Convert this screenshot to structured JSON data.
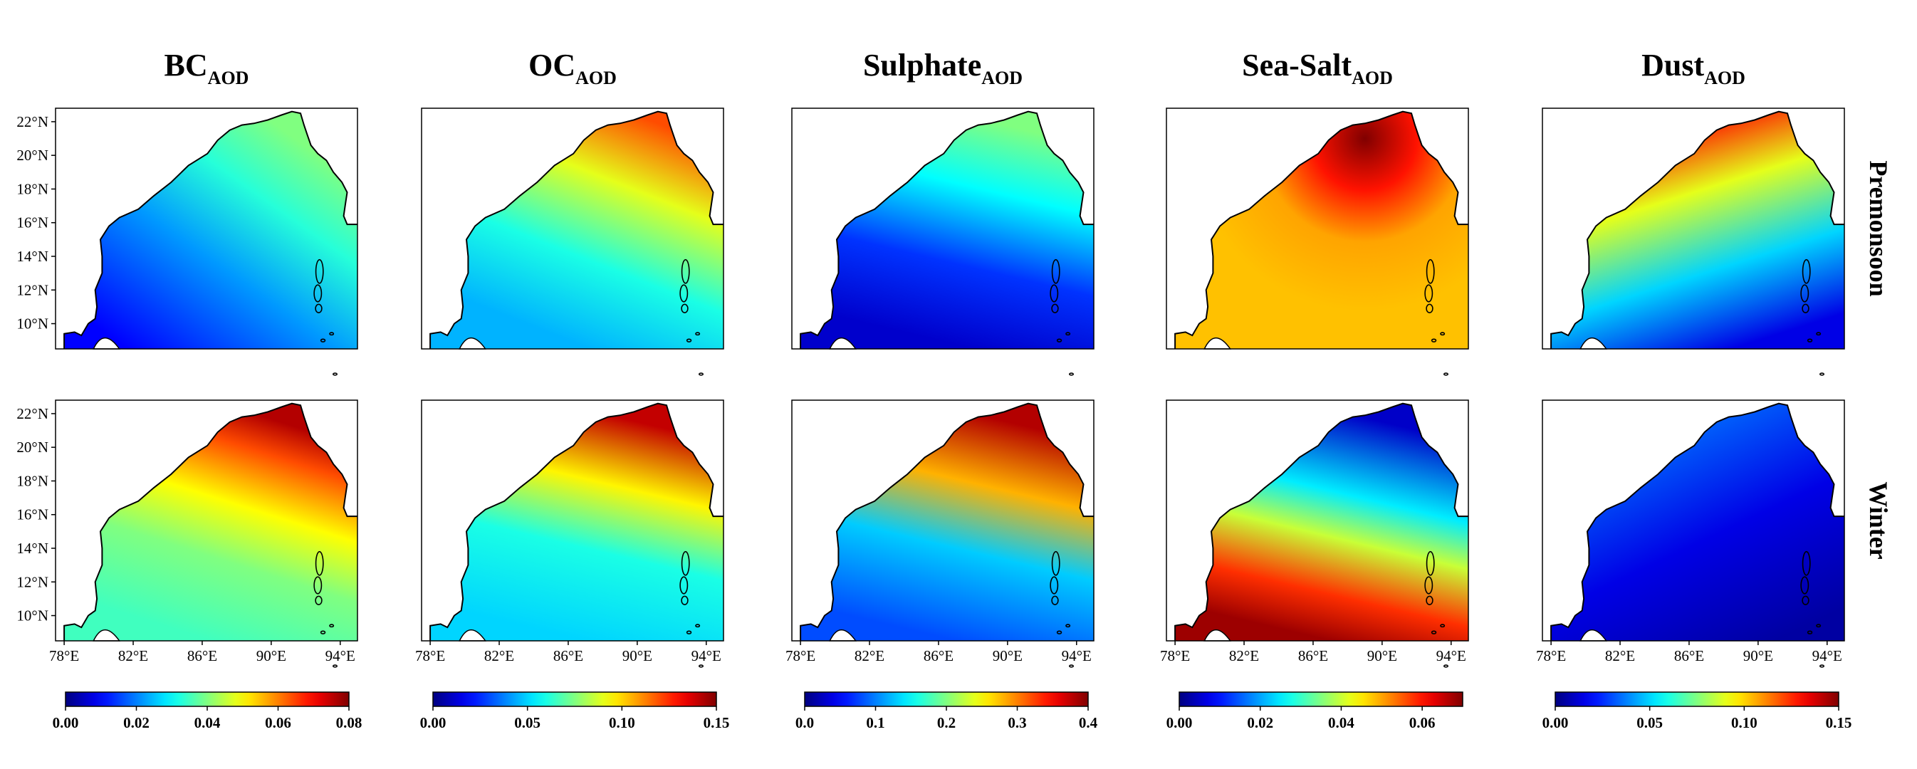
{
  "chart_data": {
    "type": "heatmap",
    "colormap": "jet",
    "columns": [
      {
        "title_main": "BC",
        "title_sub": "AOD"
      },
      {
        "title_main": "OC",
        "title_sub": "AOD"
      },
      {
        "title_main": "Sulphate",
        "title_sub": "AOD"
      },
      {
        "title_main": "Sea-Salt",
        "title_sub": "AOD"
      },
      {
        "title_main": "Dust",
        "title_sub": "AOD"
      }
    ],
    "rows": [
      "Premonsoon",
      "Winter"
    ],
    "x_ticks": [
      "78°E",
      "82°E",
      "86°E",
      "90°E",
      "94°E"
    ],
    "x_tick_values": [
      78,
      82,
      86,
      90,
      94
    ],
    "y_ticks": [
      "22°N",
      "20°N",
      "18°N",
      "16°N",
      "14°N",
      "12°N",
      "10°N"
    ],
    "y_tick_values": [
      22,
      20,
      18,
      16,
      14,
      12,
      10
    ],
    "xlim": [
      77.5,
      95
    ],
    "ylim": [
      8.5,
      22.8
    ],
    "colorbars": [
      {
        "min": 0,
        "max": 0.08,
        "ticks": [
          "0.00",
          "0.02",
          "0.04",
          "0.06",
          "0.08"
        ],
        "tick_values": [
          0,
          0.02,
          0.04,
          0.06,
          0.08
        ]
      },
      {
        "min": 0,
        "max": 0.15,
        "ticks": [
          "0.00",
          "0.05",
          "0.10",
          "0.15"
        ],
        "tick_values": [
          0,
          0.05,
          0.1,
          0.15
        ]
      },
      {
        "min": 0,
        "max": 0.4,
        "ticks": [
          "0.0",
          "0.1",
          "0.2",
          "0.3",
          "0.4"
        ],
        "tick_values": [
          0,
          0.1,
          0.2,
          0.3,
          0.4
        ]
      },
      {
        "min": 0,
        "max": 0.07,
        "ticks": [
          "0.00",
          "0.02",
          "0.04",
          "0.06"
        ],
        "tick_values": [
          0,
          0.02,
          0.04,
          0.06
        ]
      },
      {
        "min": 0,
        "max": 0.15,
        "ticks": [
          "0.00",
          "0.05",
          "0.10",
          "0.15"
        ],
        "tick_values": [
          0,
          0.05,
          0.1,
          0.15
        ]
      }
    ],
    "fields": [
      [
        {
          "gradient": "linear",
          "from": [
            81,
            9
          ],
          "to": [
            90,
            22
          ],
          "stops": [
            [
              0,
              0.01
            ],
            [
              0.45,
              0.022
            ],
            [
              0.75,
              0.033
            ],
            [
              1,
              0.04
            ]
          ]
        },
        {
          "gradient": "linear",
          "from": [
            86,
            9
          ],
          "to": [
            91,
            22
          ],
          "stops": [
            [
              0,
              0.045
            ],
            [
              0.35,
              0.06
            ],
            [
              0.7,
              0.09
            ],
            [
              1,
              0.12
            ]
          ]
        },
        {
          "gradient": "linear",
          "from": [
            86,
            9
          ],
          "to": [
            89,
            22
          ],
          "stops": [
            [
              0,
              0.03
            ],
            [
              0.35,
              0.07
            ],
            [
              0.7,
              0.15
            ],
            [
              1,
              0.2
            ]
          ]
        },
        {
          "gradient": "radial",
          "center": [
            89,
            21
          ],
          "radius": [
            10,
            9
          ],
          "stops": [
            [
              0,
              0.07
            ],
            [
              0.3,
              0.06
            ],
            [
              0.6,
              0.05
            ],
            [
              1,
              0.048
            ]
          ]
        },
        {
          "gradient": "linear",
          "from": [
            90,
            9
          ],
          "to": [
            86,
            22
          ],
          "stops": [
            [
              0,
              0.015
            ],
            [
              0.35,
              0.05
            ],
            [
              0.7,
              0.09
            ],
            [
              1,
              0.13
            ]
          ]
        }
      ],
      [
        {
          "gradient": "linear",
          "from": [
            85,
            9
          ],
          "to": [
            89,
            22
          ],
          "stops": [
            [
              0,
              0.035
            ],
            [
              0.35,
              0.04
            ],
            [
              0.6,
              0.05
            ],
            [
              0.85,
              0.064
            ],
            [
              1,
              0.076
            ]
          ]
        },
        {
          "gradient": "linear",
          "from": [
            85,
            9
          ],
          "to": [
            88,
            22
          ],
          "stops": [
            [
              0,
              0.05
            ],
            [
              0.4,
              0.06
            ],
            [
              0.7,
              0.095
            ],
            [
              1,
              0.14
            ]
          ]
        },
        {
          "gradient": "linear",
          "from": [
            85,
            9
          ],
          "to": [
            88,
            22
          ],
          "stops": [
            [
              0,
              0.08
            ],
            [
              0.4,
              0.13
            ],
            [
              0.7,
              0.28
            ],
            [
              1,
              0.38
            ]
          ]
        },
        {
          "gradient": "linear",
          "from": [
            85,
            9
          ],
          "to": [
            88,
            22
          ],
          "stops": [
            [
              0,
              0.068
            ],
            [
              0.2,
              0.058
            ],
            [
              0.45,
              0.04
            ],
            [
              0.65,
              0.025
            ],
            [
              1,
              0.005
            ]
          ]
        },
        {
          "gradient": "linear",
          "from": [
            92,
            9
          ],
          "to": [
            86,
            22
          ],
          "stops": [
            [
              0,
              0.005
            ],
            [
              0.5,
              0.015
            ],
            [
              1,
              0.035
            ]
          ]
        }
      ]
    ]
  }
}
